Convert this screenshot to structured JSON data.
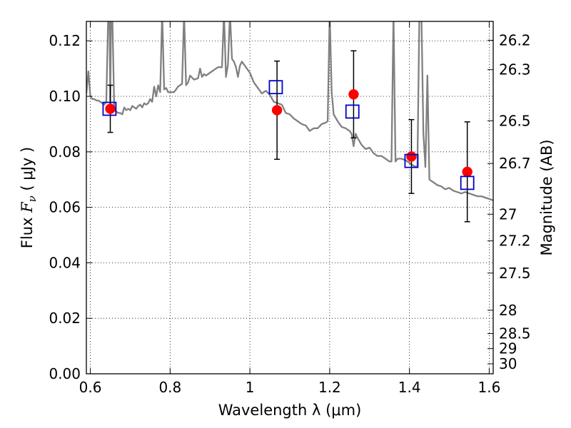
{
  "chart_data": {
    "type": "scatter",
    "xlabel": "Wavelength  λ (μm)",
    "ylabel": "Flux  F_ν  ( μJy )",
    "ylabel_parts": {
      "prefix": "Flux  ",
      "symbol": "F",
      "subscript": "ν",
      "suffix": "  ( μJy )"
    },
    "ylabel_right": "Magnitude (AB)",
    "xlim": [
      0.59,
      1.61
    ],
    "ylim": [
      0.0,
      0.127
    ],
    "grid": true,
    "x_ticks": [
      0.6,
      0.8,
      1.0,
      1.2,
      1.4,
      1.6
    ],
    "x_tick_labels": [
      "0.6",
      "0.8",
      "1",
      "1.2",
      "1.4",
      "1.6"
    ],
    "y_ticks": [
      0.0,
      0.02,
      0.04,
      0.06,
      0.08,
      0.1,
      0.12
    ],
    "y_tick_labels": [
      "0.00",
      "0.02",
      "0.04",
      "0.06",
      "0.08",
      "0.10",
      "0.12"
    ],
    "right_axis": {
      "tick_labels": [
        "26.2",
        "26.3",
        "26.5",
        "26.7",
        "27",
        "27.2",
        "27.5",
        "28",
        "28.5",
        "29",
        "30"
      ],
      "tick_flux": [
        0.1202,
        0.1096,
        0.0912,
        0.0758,
        0.0575,
        0.0479,
        0.0363,
        0.0229,
        0.0145,
        0.0091,
        0.0036
      ]
    },
    "series": [
      {
        "kind": "line",
        "color": "#808080",
        "x": [
          0.59,
          0.595,
          0.6,
          0.605,
          0.61,
          0.615,
          0.62,
          0.625,
          0.63,
          0.635,
          0.64,
          0.645,
          0.648,
          0.65,
          0.652,
          0.655,
          0.66,
          0.665,
          0.67,
          0.675,
          0.68,
          0.685,
          0.69,
          0.695,
          0.7,
          0.705,
          0.71,
          0.715,
          0.72,
          0.725,
          0.73,
          0.735,
          0.74,
          0.745,
          0.75,
          0.755,
          0.76,
          0.765,
          0.77,
          0.775,
          0.78,
          0.785,
          0.79,
          0.795,
          0.8,
          0.81,
          0.82,
          0.83,
          0.835,
          0.84,
          0.845,
          0.85,
          0.86,
          0.87,
          0.875,
          0.88,
          0.885,
          0.89,
          0.9,
          0.91,
          0.92,
          0.93,
          0.935,
          0.94,
          0.945,
          0.95,
          0.955,
          0.96,
          0.965,
          0.97,
          0.975,
          0.98,
          0.99,
          1.0,
          1.01,
          1.02,
          1.03,
          1.04,
          1.05,
          1.06,
          1.07,
          1.08,
          1.09,
          1.1,
          1.11,
          1.12,
          1.13,
          1.14,
          1.15,
          1.16,
          1.17,
          1.18,
          1.19,
          1.195,
          1.2,
          1.205,
          1.21,
          1.22,
          1.23,
          1.24,
          1.25,
          1.255,
          1.26,
          1.265,
          1.27,
          1.28,
          1.29,
          1.3,
          1.31,
          1.32,
          1.33,
          1.34,
          1.35,
          1.355,
          1.36,
          1.365,
          1.37,
          1.38,
          1.39,
          1.4,
          1.41,
          1.42,
          1.425,
          1.43,
          1.435,
          1.44,
          1.445,
          1.45,
          1.46,
          1.47,
          1.48,
          1.49,
          1.5,
          1.51,
          1.52,
          1.53,
          1.54,
          1.55,
          1.56,
          1.57,
          1.58,
          1.59,
          1.6,
          1.61
        ],
        "y": [
          0.101,
          0.109,
          0.1,
          0.099,
          0.099,
          0.0985,
          0.0985,
          0.098,
          0.0975,
          0.097,
          0.098,
          0.13,
          0.13,
          0.097,
          0.13,
          0.13,
          0.095,
          0.0945,
          0.094,
          0.094,
          0.0935,
          0.096,
          0.095,
          0.0955,
          0.095,
          0.0965,
          0.096,
          0.0955,
          0.0965,
          0.097,
          0.096,
          0.0975,
          0.097,
          0.0975,
          0.099,
          0.098,
          0.1035,
          0.1,
          0.104,
          0.1015,
          0.13,
          0.1025,
          0.103,
          0.1015,
          0.1015,
          0.1015,
          0.1035,
          0.1045,
          0.13,
          0.104,
          0.105,
          0.1075,
          0.106,
          0.1065,
          0.11,
          0.107,
          0.108,
          0.1075,
          0.1085,
          0.1095,
          0.1105,
          0.1105,
          0.13,
          0.107,
          0.1115,
          0.13,
          0.1135,
          0.1125,
          0.1105,
          0.107,
          0.111,
          0.1125,
          0.1105,
          0.1085,
          0.105,
          0.103,
          0.101,
          0.102,
          0.1005,
          0.098,
          0.0975,
          0.097,
          0.094,
          0.0935,
          0.092,
          0.091,
          0.09,
          0.0895,
          0.0875,
          0.0885,
          0.0885,
          0.09,
          0.0905,
          0.091,
          0.13,
          0.1015,
          0.0935,
          0.091,
          0.089,
          0.0885,
          0.0875,
          0.0865,
          0.082,
          0.0865,
          0.085,
          0.0825,
          0.081,
          0.0815,
          0.0795,
          0.0785,
          0.0785,
          0.0775,
          0.0765,
          0.0765,
          0.13,
          0.0765,
          0.0775,
          0.0775,
          0.077,
          0.076,
          0.075,
          0.0745,
          0.13,
          0.13,
          0.0865,
          0.0745,
          0.1075,
          0.07,
          0.069,
          0.068,
          0.0675,
          0.0665,
          0.067,
          0.066,
          0.0655,
          0.065,
          0.0655,
          0.065,
          0.0645,
          0.064,
          0.064,
          0.0635,
          0.063,
          0.0625
        ]
      },
      {
        "kind": "points",
        "marker": "circle",
        "color": "#ff0000",
        "x": [
          0.65,
          1.068,
          1.26,
          1.405,
          1.545
        ],
        "y": [
          0.0955,
          0.095,
          0.1007,
          0.0783,
          0.0728
        ],
        "yerr": [
          0.0085,
          0.0177,
          0.0157,
          0.0133,
          0.018
        ]
      },
      {
        "kind": "points",
        "marker": "square",
        "color": "#0000cc",
        "x": [
          0.648,
          1.065,
          1.257,
          1.405,
          1.545
        ],
        "y": [
          0.0955,
          0.1033,
          0.0945,
          0.0767,
          0.0688
        ]
      }
    ]
  }
}
